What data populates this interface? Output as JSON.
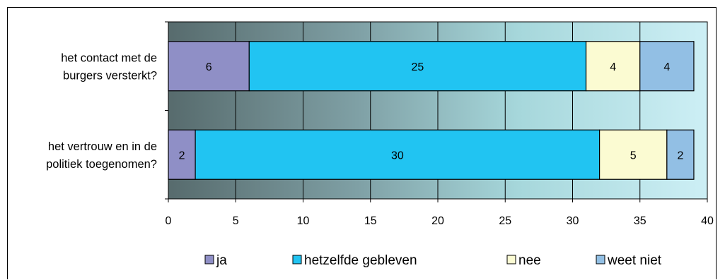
{
  "chart_data": {
    "type": "bar",
    "orientation": "horizontal",
    "stacked": true,
    "categories": [
      [
        "het contact met de",
        "burgers versterkt?"
      ],
      [
        "het vertrouw en in de",
        "politiek toegenomen?"
      ]
    ],
    "series": [
      {
        "name": "ja",
        "values": [
          6,
          2
        ],
        "color": "#8f8fc6"
      },
      {
        "name": "hetzelfde gebleven",
        "values": [
          25,
          30
        ],
        "color": "#21c4f2"
      },
      {
        "name": "nee",
        "values": [
          4,
          5
        ],
        "color": "#fbfbd2"
      },
      {
        "name": "weet niet",
        "values": [
          4,
          2
        ],
        "color": "#92bfe4"
      }
    ],
    "xlim": [
      0,
      40
    ],
    "xticks": [
      "0",
      "5",
      "10",
      "15",
      "20",
      "25",
      "30",
      "35",
      "40"
    ],
    "grid": true,
    "legend_position": "bottom",
    "plot_background": "gradient dark slate to light cyan"
  }
}
